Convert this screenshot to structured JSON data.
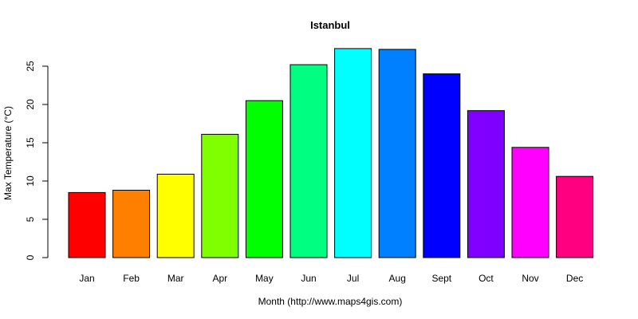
{
  "chart_data": {
    "type": "bar",
    "title": "Istanbul",
    "xlabel": "Month (http://www.maps4gis.com)",
    "ylabel": "Max Temperature (°C)",
    "ylim": [
      0,
      27.6
    ],
    "yticks": [
      0,
      5,
      10,
      15,
      20,
      25
    ],
    "categories": [
      "Jan",
      "Feb",
      "Mar",
      "Apr",
      "May",
      "Jun",
      "Jul",
      "Aug",
      "Sept",
      "Oct",
      "Nov",
      "Dec"
    ],
    "values": [
      8.5,
      8.8,
      10.9,
      16.1,
      20.5,
      25.2,
      27.3,
      27.2,
      24.0,
      19.2,
      14.4,
      10.6
    ],
    "colors": [
      "#ff0000",
      "#ff8000",
      "#ffff00",
      "#80ff00",
      "#00ff00",
      "#00ff80",
      "#00ffff",
      "#0080ff",
      "#0000ff",
      "#8000ff",
      "#ff00ff",
      "#ff0080"
    ],
    "grid": false,
    "legend": "none"
  }
}
